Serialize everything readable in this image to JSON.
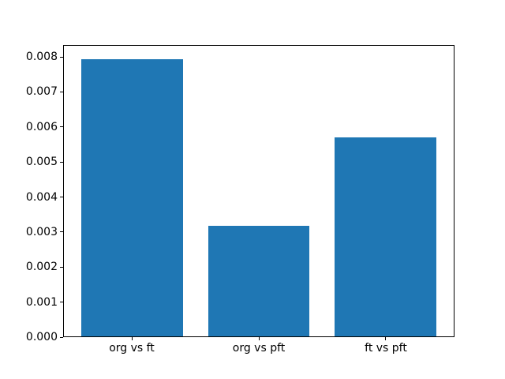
{
  "chart_data": {
    "type": "bar",
    "title": "",
    "xlabel": "",
    "ylabel": "",
    "categories": [
      "org vs ft",
      "org vs pft",
      "ft vs pft"
    ],
    "values": [
      0.00794,
      0.00317,
      0.0057
    ],
    "bar_color": "#1f77b4",
    "bar_width": 0.8,
    "ylim": [
      0,
      0.00834
    ],
    "xlim": [
      -0.545,
      2.545
    ],
    "grid": false,
    "legend": "none",
    "yticks": [
      {
        "value": 0.0,
        "label": "0.000"
      },
      {
        "value": 0.001,
        "label": "0.001"
      },
      {
        "value": 0.002,
        "label": "0.002"
      },
      {
        "value": 0.003,
        "label": "0.003"
      },
      {
        "value": 0.004,
        "label": "0.004"
      },
      {
        "value": 0.005,
        "label": "0.005"
      },
      {
        "value": 0.006,
        "label": "0.006"
      },
      {
        "value": 0.007,
        "label": "0.007"
      },
      {
        "value": 0.008,
        "label": "0.008"
      }
    ]
  }
}
